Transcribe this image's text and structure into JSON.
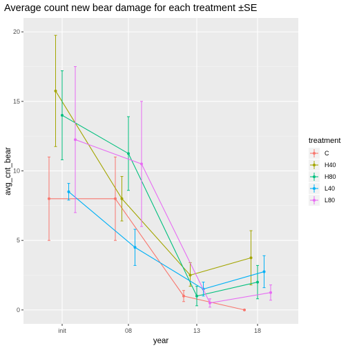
{
  "chart_data": {
    "type": "line",
    "title": "Average count new bear damage for each treatment ±SE",
    "xlabel": "year",
    "ylabel": "avg_cnt_bear",
    "categories": [
      "init",
      "08",
      "13",
      "18"
    ],
    "ylim": [
      -1,
      21
    ],
    "yticks": [
      0,
      5,
      10,
      15,
      20
    ],
    "grid": true,
    "legend": {
      "title": "treatment",
      "position": "right"
    },
    "series": [
      {
        "name": "C",
        "color": "#F8766D",
        "points": [
          {
            "x": "init",
            "y": 8.0,
            "lo": 5.0,
            "hi": 11.0
          },
          {
            "x": "08",
            "y": 8.0,
            "lo": 5.0,
            "hi": 11.0
          },
          {
            "x": "13",
            "y": 1.0,
            "lo": 0.6,
            "hi": 1.4
          },
          {
            "x": "18",
            "y": 0.0,
            "lo": 0.0,
            "hi": 0.0
          }
        ]
      },
      {
        "name": "H40",
        "color": "#A3A500",
        "points": [
          {
            "x": "init",
            "y": 15.75,
            "lo": 11.75,
            "hi": 19.75
          },
          {
            "x": "08",
            "y": 8.0,
            "lo": 6.4,
            "hi": 9.6
          },
          {
            "x": "13",
            "y": 2.5,
            "lo": 1.7,
            "hi": 3.4
          },
          {
            "x": "18",
            "y": 3.75,
            "lo": 1.8,
            "hi": 5.7
          }
        ]
      },
      {
        "name": "H80",
        "color": "#00BF7D",
        "points": [
          {
            "x": "init",
            "y": 14.0,
            "lo": 10.8,
            "hi": 17.2
          },
          {
            "x": "08",
            "y": 11.25,
            "lo": 8.6,
            "hi": 13.9
          },
          {
            "x": "13",
            "y": 1.0,
            "lo": 0.3,
            "hi": 1.7
          },
          {
            "x": "18",
            "y": 2.0,
            "lo": 0.8,
            "hi": 3.2
          }
        ]
      },
      {
        "name": "L40",
        "color": "#00B0F6",
        "points": [
          {
            "x": "init",
            "y": 8.5,
            "lo": 7.9,
            "hi": 9.1
          },
          {
            "x": "08",
            "y": 4.5,
            "lo": 3.2,
            "hi": 5.8
          },
          {
            "x": "13",
            "y": 1.5,
            "lo": 1.0,
            "hi": 2.0
          },
          {
            "x": "18",
            "y": 2.75,
            "lo": 1.6,
            "hi": 3.9
          }
        ]
      },
      {
        "name": "L80",
        "color": "#E76BF3",
        "points": [
          {
            "x": "init",
            "y": 12.25,
            "lo": 7.0,
            "hi": 17.5
          },
          {
            "x": "08",
            "y": 10.5,
            "lo": 6.0,
            "hi": 15.0
          },
          {
            "x": "13",
            "y": 0.5,
            "lo": 0.2,
            "hi": 0.8
          },
          {
            "x": "18",
            "y": 1.25,
            "lo": 0.7,
            "hi": 1.8
          }
        ]
      }
    ]
  }
}
